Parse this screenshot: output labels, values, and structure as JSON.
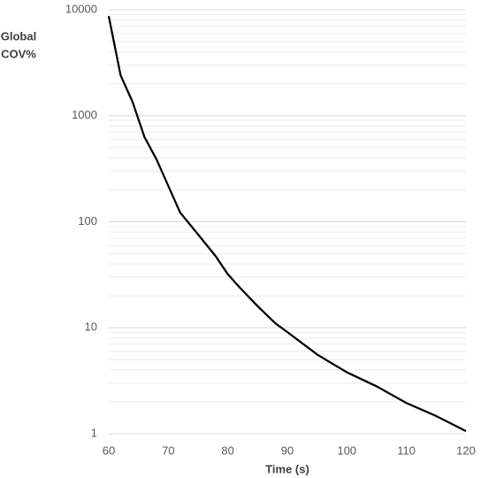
{
  "chart_data": {
    "type": "line",
    "x_label": "Time (s)",
    "y_label": [
      "Global",
      "COV%"
    ],
    "x": [
      60,
      62,
      64,
      66,
      68,
      70,
      72,
      75,
      78,
      80,
      82,
      85,
      88,
      90,
      95,
      100,
      105,
      110,
      115,
      120
    ],
    "series": [
      {
        "color": "#000000",
        "values": [
          8700,
          2400,
          1350,
          630,
          390,
          218,
          122,
          76,
          47,
          32,
          24,
          16,
          11,
          9.1,
          5.6,
          3.8,
          2.8,
          1.95,
          1.47,
          1.06
        ]
      }
    ],
    "xlim": [
      60,
      120
    ],
    "xticks": [
      60,
      70,
      80,
      90,
      100,
      110,
      120
    ],
    "ylim": [
      1,
      10000
    ],
    "yticks": [
      1,
      10,
      100,
      1000,
      10000
    ],
    "log_y": true,
    "grid": true,
    "minor_grid": true
  }
}
